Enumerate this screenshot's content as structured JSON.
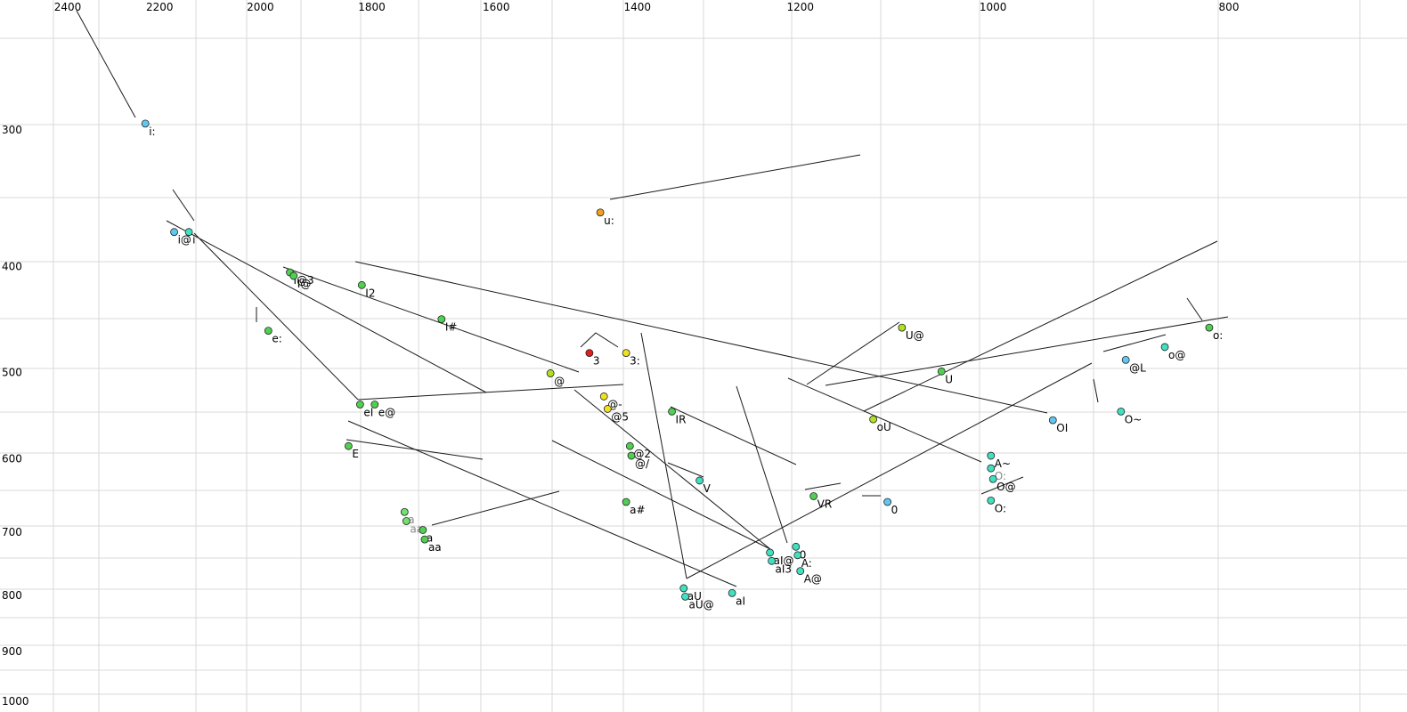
{
  "chart_data": {
    "type": "scatter",
    "title": "",
    "xlabel": "",
    "ylabel": "",
    "x_axis_reversed": true,
    "y_axis_reversed": true,
    "x_scale": "log",
    "y_scale": "log",
    "xlim": [
      2450,
      690
    ],
    "ylim": [
      225,
      1000
    ],
    "grid": true,
    "x_ticks": [
      2400,
      2200,
      2000,
      1800,
      1600,
      1400,
      1200,
      1000,
      800
    ],
    "y_ticks": [
      300,
      400,
      500,
      600,
      700,
      800,
      900,
      1000
    ],
    "colors": {
      "red": "#e02020",
      "orange": "#f0a020",
      "yellow": "#f0e020",
      "yellow_green": "#b0e020",
      "green": "#50d050",
      "light_green": "#70e070",
      "cyan": "#40e0c0",
      "light_blue": "#60c8f0"
    },
    "points": [
      {
        "label": "i:",
        "f2": 2230,
        "f1": 296,
        "color": "light_blue",
        "dim": false
      },
      {
        "label": "i@",
        "f2": 2170,
        "f1": 372,
        "color": "light_blue",
        "dim": false
      },
      {
        "label": "i",
        "f2": 2140,
        "f1": 372,
        "color": "cyan",
        "dim": false
      },
      {
        "label": "u:",
        "f2": 1450,
        "f1": 357,
        "color": "orange",
        "dim": false
      },
      {
        "label": "e:",
        "f2": 1985,
        "f1": 458,
        "color": "green",
        "dim": false
      },
      {
        "label": "I@3",
        "f2": 1945,
        "f1": 405,
        "color": "green",
        "dim": false
      },
      {
        "label": "I@",
        "f2": 1938,
        "f1": 408,
        "color": "green",
        "dim": false
      },
      {
        "label": "I2",
        "f2": 1817,
        "f1": 416,
        "color": "green",
        "dim": false
      },
      {
        "label": "I#",
        "f2": 1685,
        "f1": 447,
        "color": "green",
        "dim": false
      },
      {
        "label": "3",
        "f2": 1465,
        "f1": 480,
        "color": "red",
        "dim": false
      },
      {
        "label": "3:",
        "f2": 1415,
        "f1": 480,
        "color": "yellow",
        "dim": false
      },
      {
        "label": "@",
        "f2": 1520,
        "f1": 501,
        "color": "yellow_green",
        "dim": false
      },
      {
        "label": "eI",
        "f2": 1820,
        "f1": 535,
        "color": "green",
        "dim": false
      },
      {
        "label": "e@",
        "f2": 1795,
        "f1": 535,
        "color": "green",
        "dim": false
      },
      {
        "label": "@-",
        "f2": 1445,
        "f1": 526,
        "color": "yellow",
        "dim": false
      },
      {
        "label": "@5",
        "f2": 1440,
        "f1": 540,
        "color": "yellow",
        "dim": false
      },
      {
        "label": "IR",
        "f2": 1355,
        "f1": 543,
        "color": "green",
        "dim": false
      },
      {
        "label": "E",
        "f2": 1840,
        "f1": 584,
        "color": "green",
        "dim": false
      },
      {
        "label": "@2",
        "f2": 1410,
        "f1": 584,
        "color": "green",
        "dim": false
      },
      {
        "label": "@/",
        "f2": 1408,
        "f1": 596,
        "color": "green",
        "dim": false
      },
      {
        "label": "V",
        "f2": 1320,
        "f1": 628,
        "color": "cyan",
        "dim": false
      },
      {
        "label": "a#",
        "f2": 1415,
        "f1": 657,
        "color": "green",
        "dim": false
      },
      {
        "label": "a",
        "f2": 1745,
        "f1": 671,
        "color": "light_green",
        "dim": true
      },
      {
        "label": "aa",
        "f2": 1742,
        "f1": 684,
        "color": "light_green",
        "dim": true
      },
      {
        "label": "a",
        "f2": 1715,
        "f1": 697,
        "color": "green",
        "dim": false
      },
      {
        "label": "aa",
        "f2": 1712,
        "f1": 711,
        "color": "green",
        "dim": false
      },
      {
        "label": "aU",
        "f2": 1340,
        "f1": 788,
        "color": "cyan",
        "dim": false
      },
      {
        "label": "aU@",
        "f2": 1338,
        "f1": 802,
        "color": "cyan",
        "dim": false
      },
      {
        "label": "aI",
        "f2": 1280,
        "f1": 796,
        "color": "cyan",
        "dim": false
      },
      {
        "label": "aI@",
        "f2": 1235,
        "f1": 731,
        "color": "cyan",
        "dim": false
      },
      {
        "label": "aI3",
        "f2": 1233,
        "f1": 744,
        "color": "cyan",
        "dim": false
      },
      {
        "label": "0",
        "f2": 1205,
        "f1": 722,
        "color": "cyan",
        "dim": false
      },
      {
        "label": "A:",
        "f2": 1203,
        "f1": 735,
        "color": "cyan",
        "dim": false
      },
      {
        "label": "A@",
        "f2": 1200,
        "f1": 760,
        "color": "cyan",
        "dim": false
      },
      {
        "label": "VR",
        "f2": 1185,
        "f1": 649,
        "color": "green",
        "dim": false
      },
      {
        "label": "U@",
        "f2": 1090,
        "f1": 455,
        "color": "yellow_green",
        "dim": false
      },
      {
        "label": "U",
        "f2": 1050,
        "f1": 499,
        "color": "green",
        "dim": false
      },
      {
        "label": "oU",
        "f2": 1120,
        "f1": 552,
        "color": "yellow_green",
        "dim": false
      },
      {
        "label": "0",
        "f2": 1105,
        "f1": 657,
        "color": "light_blue",
        "dim": false
      },
      {
        "label": "OI",
        "f2": 945,
        "f1": 553,
        "color": "light_blue",
        "dim": false
      },
      {
        "label": "A~",
        "f2": 1002,
        "f1": 596,
        "color": "cyan",
        "dim": false
      },
      {
        "label": "O:",
        "f2": 1002,
        "f1": 612,
        "color": "cyan",
        "dim": true
      },
      {
        "label": "O@",
        "f2": 1000,
        "f1": 626,
        "color": "cyan",
        "dim": false
      },
      {
        "label": "O:",
        "f2": 1002,
        "f1": 655,
        "color": "cyan",
        "dim": false
      },
      {
        "label": "@L",
        "f2": 882,
        "f1": 487,
        "color": "light_blue",
        "dim": false
      },
      {
        "label": "o@",
        "f2": 850,
        "f1": 474,
        "color": "cyan",
        "dim": false
      },
      {
        "label": "O~",
        "f2": 886,
        "f1": 543,
        "color": "cyan",
        "dim": false
      },
      {
        "label": "o:",
        "f2": 815,
        "f1": 455,
        "color": "green",
        "dim": false
      }
    ]
  }
}
